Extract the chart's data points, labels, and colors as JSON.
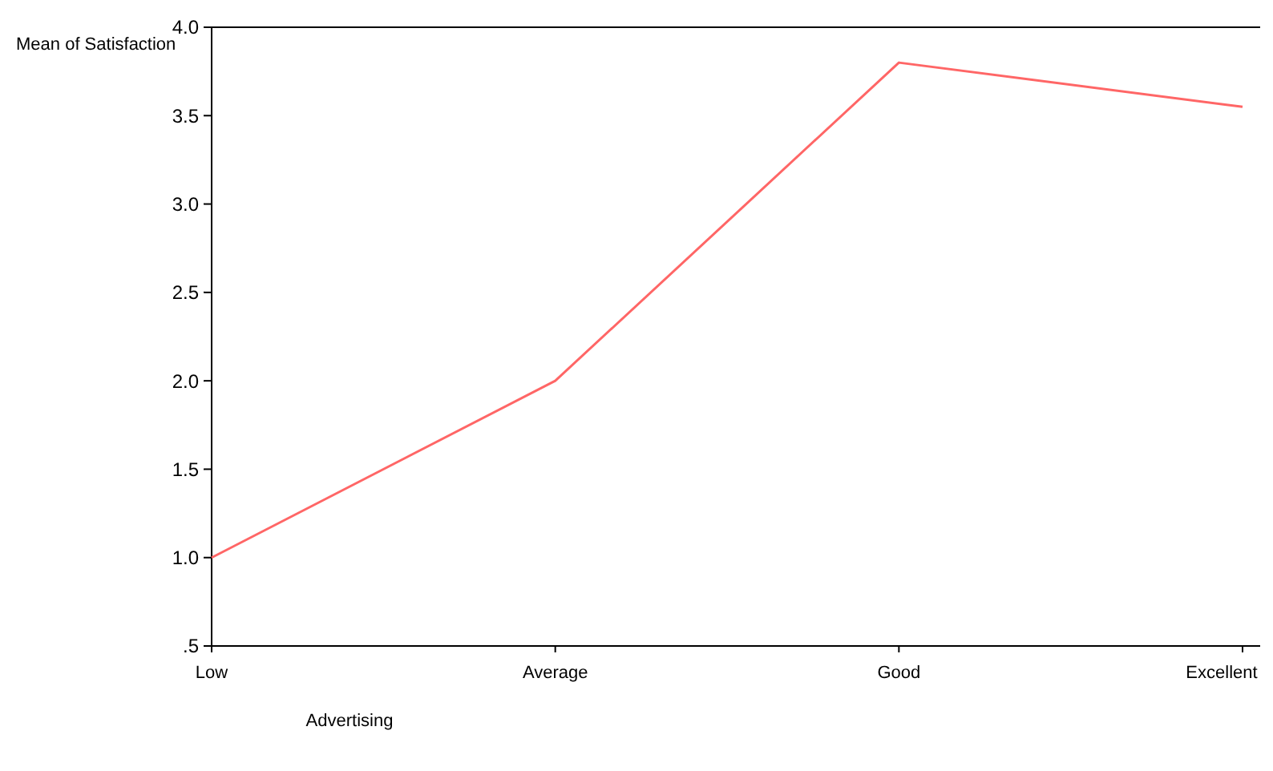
{
  "chart_data": {
    "type": "line",
    "ylabel": "Mean of Satisfaction",
    "xlabel": "Advertising",
    "categories": [
      "Low",
      "Average",
      "Good",
      "Excellent"
    ],
    "series": [
      {
        "color": "#ff6666",
        "values": [
          1.0,
          2.0,
          3.8,
          3.55
        ]
      }
    ],
    "ylim": [
      0.5,
      4.0
    ],
    "yticks": [
      {
        "value": 0.5,
        "label": ".5"
      },
      {
        "value": 1.0,
        "label": "1.0"
      },
      {
        "value": 1.5,
        "label": "1.5"
      },
      {
        "value": 2.0,
        "label": "2.0"
      },
      {
        "value": 2.5,
        "label": "2.5"
      },
      {
        "value": 3.0,
        "label": "3.0"
      },
      {
        "value": 3.5,
        "label": "3.5"
      },
      {
        "value": 4.0,
        "label": "4.0"
      }
    ],
    "grid": false
  }
}
